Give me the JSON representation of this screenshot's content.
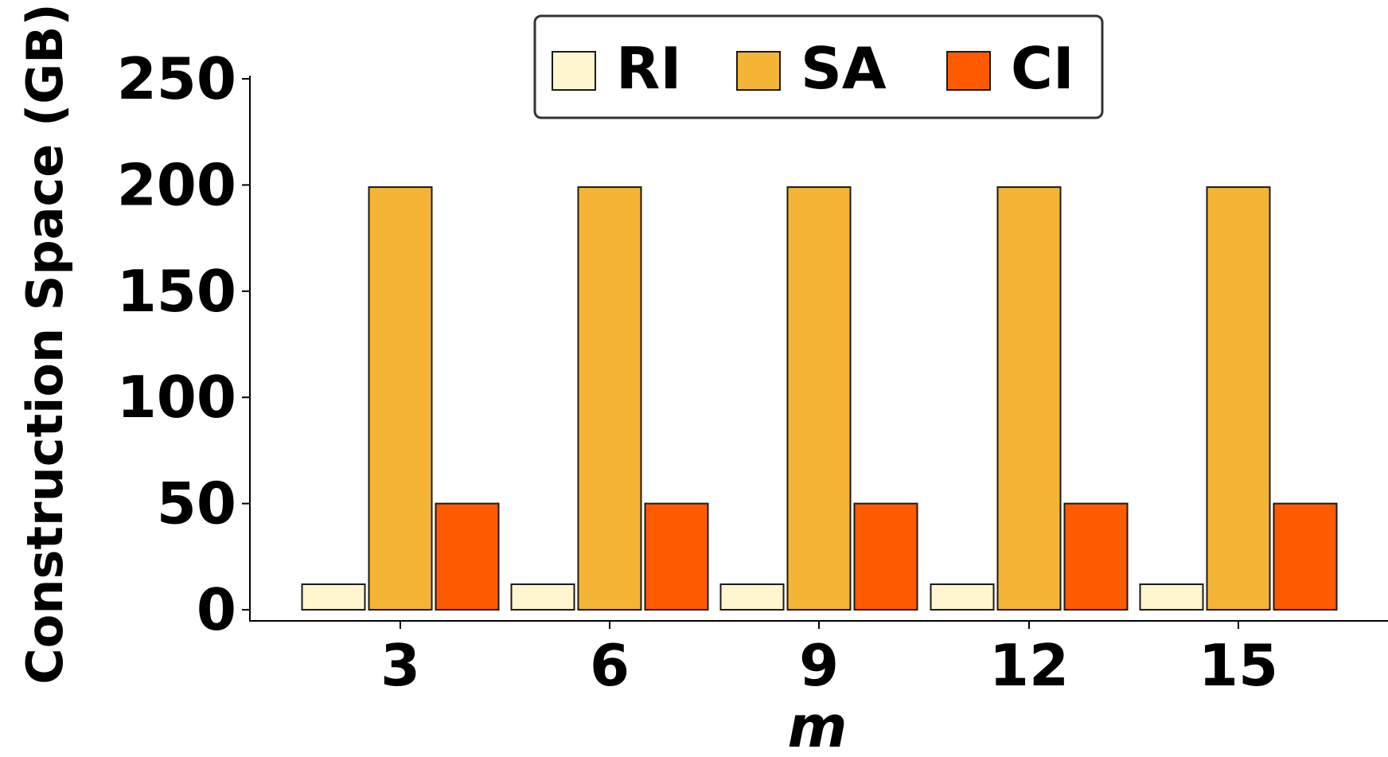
{
  "chart_data": {
    "type": "bar",
    "categories": [
      "3",
      "6",
      "9",
      "12",
      "15"
    ],
    "series": [
      {
        "name": "RI",
        "color": "#fff5cf",
        "values": [
          12,
          12,
          12,
          12,
          12
        ]
      },
      {
        "name": "SA",
        "color": "#f4b536",
        "values": [
          199,
          199,
          199,
          199,
          199
        ]
      },
      {
        "name": "CI",
        "color": "#ff5a00",
        "values": [
          50,
          50,
          50,
          50,
          50
        ]
      }
    ],
    "xlabel": "m",
    "ylabel": "Construction Space (GB)",
    "ylim": [
      0,
      250
    ],
    "yticks": [
      "0",
      "50",
      "100",
      "150",
      "200",
      "250"
    ],
    "legend_position": "top-center",
    "grid": false
  }
}
